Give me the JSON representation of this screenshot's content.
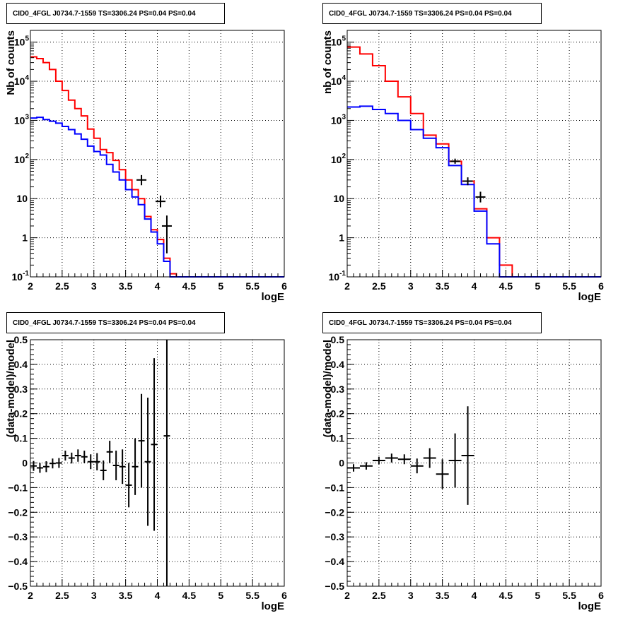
{
  "chart_data": [
    {
      "type": "histogram",
      "title": "CID0_4FGL J0734.7-1559 TS=3306.24 PS=0.04 PS=0.04",
      "xlabel": "logE",
      "ylabel": "Nb of counts",
      "xlim": [
        2,
        6
      ],
      "ylim": [
        0.1,
        200000
      ],
      "log_y": true,
      "grid": true,
      "x_ticks": [
        "2",
        "2.5",
        "3",
        "3.5",
        "4",
        "4.5",
        "5",
        "5.5",
        "6"
      ],
      "y_ticks": [
        {
          "v": 0.1,
          "m": "10",
          "e": "-1"
        },
        {
          "v": 1,
          "m": "1",
          "e": ""
        },
        {
          "v": 10,
          "m": "10",
          "e": ""
        },
        {
          "v": 100,
          "m": "10",
          "e": "2"
        },
        {
          "v": 1000,
          "m": "10",
          "e": "3"
        },
        {
          "v": 10000,
          "m": "10",
          "e": "4"
        },
        {
          "v": 100000,
          "m": "10",
          "e": "5"
        }
      ],
      "bin_edges": [
        2.0,
        2.1,
        2.2,
        2.3,
        2.4,
        2.5,
        2.6,
        2.7,
        2.8,
        2.9,
        3.0,
        3.1,
        3.2,
        3.3,
        3.4,
        3.5,
        3.6,
        3.7,
        3.8,
        3.9,
        4.0,
        4.1,
        4.2,
        4.3,
        4.4,
        4.5,
        4.6,
        4.7,
        4.8,
        4.9,
        5.0,
        5.1,
        5.2,
        5.3,
        5.4,
        5.5,
        5.6,
        5.7,
        5.8,
        5.9,
        6.0
      ],
      "series": [
        {
          "color": "#ff0000",
          "values": [
            42000,
            38000,
            30000,
            20000,
            10000,
            5800,
            3300,
            2000,
            1300,
            600,
            350,
            180,
            150,
            95,
            55,
            30,
            17,
            10,
            3.5,
            1.6,
            0.9,
            0.3,
            0.12,
            0.1,
            0.1,
            0.1,
            0.1,
            0.1,
            0.1,
            0.1,
            0.1,
            0.1,
            0.1,
            0.1,
            0.1,
            0.1,
            0.1,
            0.1,
            0.1,
            0.1
          ]
        },
        {
          "color": "#0000ff",
          "values": [
            1150,
            1200,
            1050,
            950,
            850,
            700,
            580,
            450,
            330,
            220,
            160,
            130,
            75,
            48,
            30,
            17,
            11,
            7,
            3.0,
            1.4,
            0.7,
            0.25,
            0.1,
            0.1,
            0.1,
            0.1,
            0.1,
            0.1,
            0.1,
            0.1,
            0.1,
            0.1,
            0.1,
            0.1,
            0.1,
            0.1,
            0.1,
            0.1,
            0.1,
            0.1
          ]
        }
      ],
      "points": [
        {
          "x": 3.75,
          "y": 30,
          "yerr_lo": 8,
          "yerr_hi": 10
        },
        {
          "x": 4.05,
          "y": 8.5,
          "yerr_lo": 2.5,
          "yerr_hi": 3.5
        },
        {
          "x": 4.15,
          "y": 2.0,
          "yerr_lo": 1.6,
          "yerr_hi": 1.7
        }
      ]
    },
    {
      "type": "histogram",
      "title": "CID0_4FGL J0734.7-1559 TS=3306.24 PS=0.04 PS=0.04",
      "xlabel": "logE",
      "ylabel": "nb of counts",
      "xlim": [
        2,
        6
      ],
      "ylim": [
        0.1,
        200000
      ],
      "log_y": true,
      "grid": true,
      "x_ticks": [
        "2",
        "2.5",
        "3",
        "3.5",
        "4",
        "4.5",
        "5",
        "5.5",
        "6"
      ],
      "y_ticks": [
        {
          "v": 0.1,
          "m": "10",
          "e": "-1"
        },
        {
          "v": 1,
          "m": "1",
          "e": ""
        },
        {
          "v": 10,
          "m": "10",
          "e": ""
        },
        {
          "v": 100,
          "m": "10",
          "e": "2"
        },
        {
          "v": 1000,
          "m": "10",
          "e": "3"
        },
        {
          "v": 10000,
          "m": "10",
          "e": "4"
        },
        {
          "v": 100000,
          "m": "10",
          "e": "5"
        }
      ],
      "bin_edges": [
        2.0,
        2.2,
        2.4,
        2.6,
        2.8,
        3.0,
        3.2,
        3.4,
        3.6,
        3.8,
        4.0,
        4.2,
        4.4,
        4.6,
        4.8,
        5.0,
        5.2,
        5.4,
        5.6,
        5.8,
        6.0
      ],
      "series": [
        {
          "color": "#ff0000",
          "values": [
            75000,
            50000,
            25000,
            10000,
            4000,
            1500,
            420,
            250,
            90,
            28,
            5.5,
            1.0,
            0.2,
            0.1,
            0.1,
            0.1,
            0.1,
            0.1,
            0.1,
            0.1
          ]
        },
        {
          "color": "#0000ff",
          "values": [
            2200,
            2300,
            1900,
            1500,
            1000,
            580,
            350,
            200,
            70,
            23,
            4.8,
            0.7,
            0.1,
            0.1,
            0.1,
            0.1,
            0.1,
            0.1,
            0.1,
            0.1
          ]
        }
      ],
      "points": [
        {
          "x": 3.7,
          "y": 90,
          "yerr_lo": 12,
          "yerr_hi": 15
        },
        {
          "x": 3.9,
          "y": 28,
          "yerr_lo": 6,
          "yerr_hi": 7
        },
        {
          "x": 4.1,
          "y": 11,
          "yerr_lo": 3,
          "yerr_hi": 4
        }
      ]
    },
    {
      "type": "scatter",
      "title": "CID0_4FGL J0734.7-1559 TS=3306.24 PS=0.04 PS=0.04",
      "xlabel": "logE",
      "ylabel": "(data-model)/model",
      "xlim": [
        2,
        6
      ],
      "ylim": [
        -0.5,
        0.5
      ],
      "log_y": false,
      "grid": true,
      "x_ticks": [
        "2",
        "2.5",
        "3",
        "3.5",
        "4",
        "4.5",
        "5",
        "5.5",
        "6"
      ],
      "y_ticks": [
        {
          "v": -0.5,
          "m": "−0.5",
          "e": ""
        },
        {
          "v": -0.4,
          "m": "−0.4",
          "e": ""
        },
        {
          "v": -0.3,
          "m": "−0.3",
          "e": ""
        },
        {
          "v": -0.2,
          "m": "−0.2",
          "e": ""
        },
        {
          "v": -0.1,
          "m": "−0.1",
          "e": ""
        },
        {
          "v": 0,
          "m": "0",
          "e": ""
        },
        {
          "v": 0.1,
          "m": "0.1",
          "e": ""
        },
        {
          "v": 0.2,
          "m": "0.2",
          "e": ""
        },
        {
          "v": 0.3,
          "m": "0.3",
          "e": ""
        },
        {
          "v": 0.4,
          "m": "0.4",
          "e": ""
        },
        {
          "v": 0.5,
          "m": "0.5",
          "e": ""
        }
      ],
      "xbin": 0.1,
      "points": [
        {
          "x": 2.05,
          "y": -0.012,
          "yerr": 0.02
        },
        {
          "x": 2.15,
          "y": -0.02,
          "yerr": 0.02
        },
        {
          "x": 2.25,
          "y": -0.015,
          "yerr": 0.022
        },
        {
          "x": 2.35,
          "y": -0.002,
          "yerr": 0.02
        },
        {
          "x": 2.45,
          "y": 0.0,
          "yerr": 0.02
        },
        {
          "x": 2.55,
          "y": 0.03,
          "yerr": 0.02
        },
        {
          "x": 2.65,
          "y": 0.02,
          "yerr": 0.022
        },
        {
          "x": 2.75,
          "y": 0.03,
          "yerr": 0.025
        },
        {
          "x": 2.85,
          "y": 0.025,
          "yerr": 0.025
        },
        {
          "x": 2.95,
          "y": 0.005,
          "yerr": 0.03
        },
        {
          "x": 3.05,
          "y": 0.005,
          "yerr": 0.035
        },
        {
          "x": 3.15,
          "y": -0.03,
          "yerr": 0.04
        },
        {
          "x": 3.25,
          "y": 0.045,
          "yerr": 0.045
        },
        {
          "x": 3.35,
          "y": -0.01,
          "yerr": 0.06
        },
        {
          "x": 3.45,
          "y": -0.015,
          "yerr": 0.07
        },
        {
          "x": 3.55,
          "y": -0.09,
          "yerr": 0.09
        },
        {
          "x": 3.65,
          "y": -0.015,
          "yerr": 0.115
        },
        {
          "x": 3.75,
          "y": 0.09,
          "yerr": 0.19
        },
        {
          "x": 3.85,
          "y": 0.005,
          "yerr": 0.26
        },
        {
          "x": 3.95,
          "y": 0.075,
          "yerr": 0.35
        },
        {
          "x": 4.15,
          "y": 0.11,
          "yerr": 0.7
        }
      ]
    },
    {
      "type": "scatter",
      "title": "CID0_4FGL J0734.7-1559 TS=3306.24 PS=0.04 PS=0.04",
      "xlabel": "logE",
      "ylabel": "(data-model)/model",
      "xlim": [
        2,
        6
      ],
      "ylim": [
        -0.5,
        0.5
      ],
      "log_y": false,
      "grid": true,
      "x_ticks": [
        "2",
        "2.5",
        "3",
        "3.5",
        "4",
        "4.5",
        "5",
        "5.5",
        "6"
      ],
      "y_ticks": [
        {
          "v": -0.5,
          "m": "−0.5",
          "e": ""
        },
        {
          "v": -0.4,
          "m": "−0.4",
          "e": ""
        },
        {
          "v": -0.3,
          "m": "−0.3",
          "e": ""
        },
        {
          "v": -0.2,
          "m": "−0.2",
          "e": ""
        },
        {
          "v": -0.1,
          "m": "−0.1",
          "e": ""
        },
        {
          "v": 0,
          "m": "0",
          "e": ""
        },
        {
          "v": 0.1,
          "m": "0.1",
          "e": ""
        },
        {
          "v": 0.2,
          "m": "0.2",
          "e": ""
        },
        {
          "v": 0.3,
          "m": "0.3",
          "e": ""
        },
        {
          "v": 0.4,
          "m": "0.4",
          "e": ""
        },
        {
          "v": 0.5,
          "m": "0.5",
          "e": ""
        }
      ],
      "xbin": 0.2,
      "points": [
        {
          "x": 2.1,
          "y": -0.02,
          "yerr": 0.015
        },
        {
          "x": 2.3,
          "y": -0.012,
          "yerr": 0.015
        },
        {
          "x": 2.5,
          "y": 0.01,
          "yerr": 0.015
        },
        {
          "x": 2.7,
          "y": 0.02,
          "yerr": 0.018
        },
        {
          "x": 2.9,
          "y": 0.015,
          "yerr": 0.02
        },
        {
          "x": 3.1,
          "y": -0.012,
          "yerr": 0.03
        },
        {
          "x": 3.3,
          "y": 0.02,
          "yerr": 0.04
        },
        {
          "x": 3.5,
          "y": -0.045,
          "yerr": 0.06
        },
        {
          "x": 3.7,
          "y": 0.01,
          "yerr": 0.11
        },
        {
          "x": 3.9,
          "y": 0.03,
          "yerr": 0.2
        }
      ]
    }
  ]
}
